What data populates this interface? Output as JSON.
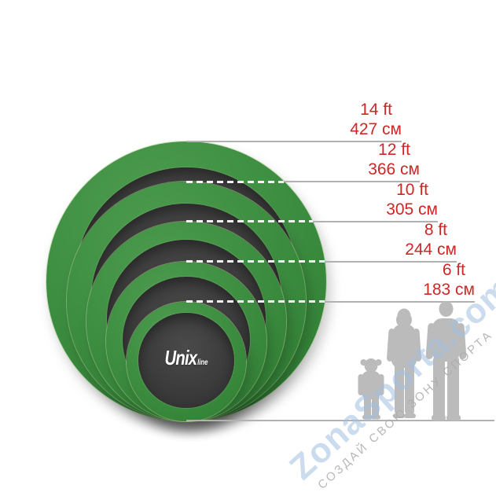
{
  "diagram": {
    "type": "size-comparison",
    "product": "round trampolines",
    "bottom_tangent": true
  },
  "trampolines": [
    {
      "ft": 14,
      "cm": 427,
      "ft_label": "14 ft",
      "cm_label": "427 см"
    },
    {
      "ft": 12,
      "cm": 366,
      "ft_label": "12 ft",
      "cm_label": "366 см"
    },
    {
      "ft": 10,
      "cm": 305,
      "ft_label": "10 ft",
      "cm_label": "305 см"
    },
    {
      "ft": 8,
      "cm": 244,
      "ft_label": "8 ft",
      "cm_label": "244 см"
    },
    {
      "ft": 6,
      "cm": 183,
      "ft_label": "6 ft",
      "cm_label": "183 см"
    }
  ],
  "logo": {
    "brand": "Unix",
    "sub": "line"
  },
  "watermark": {
    "main": "ZonaSporta.com",
    "slogan": "СОЗДАЙ СВОЮ ЗОНУ СПОРТА"
  },
  "colors": {
    "green_light": "#4d9c50",
    "green": "#3e8e42",
    "green_dark": "#2e7d32",
    "green_rim": "#a9d28c",
    "mat": "#3c3c3c",
    "label_red": "#cd2727",
    "line_gray": "#b1b1b1",
    "dash_white": "#fcfcfc",
    "silhouette_gray": "#bbbbbb",
    "watermark_blue": "#a0bfe0",
    "watermark_gray": "#acacac",
    "logo_white": "#ffffff"
  }
}
